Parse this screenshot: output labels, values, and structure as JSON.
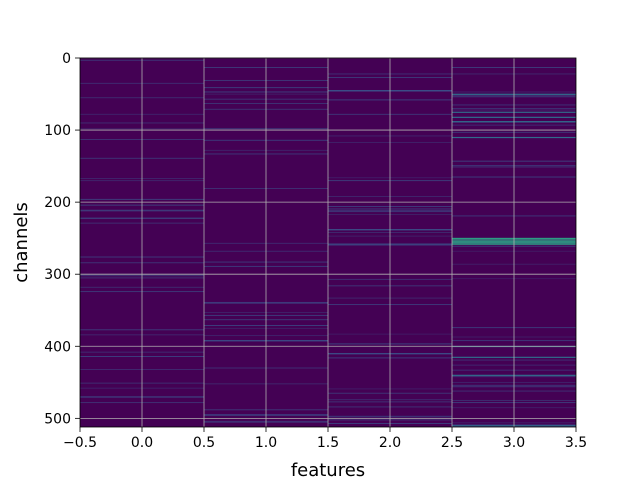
{
  "chart_data": {
    "type": "heatmap",
    "title": "",
    "xlabel": "features",
    "ylabel": "channels",
    "xlim": [
      -0.5,
      3.5
    ],
    "ylim": [
      512,
      0
    ],
    "columns": [
      0,
      1,
      2,
      3
    ],
    "rows": 512,
    "x_ticks": [
      "-0.5",
      "0.0",
      "0.5",
      "1.0",
      "1.5",
      "2.0",
      "2.5",
      "3.0",
      "3.5"
    ],
    "y_ticks": [
      "0",
      "100",
      "200",
      "300",
      "400",
      "500"
    ],
    "grid": true,
    "colormap": "viridis",
    "background_color": "#440154",
    "notable_highlights": [
      {
        "feature": 3,
        "channels": [
          250,
          252,
          254,
          256,
          258
        ],
        "level": 0.55
      },
      {
        "feature": 3,
        "channels": [
          50,
          75,
          82,
          88,
          110,
          400,
          415,
          440,
          510
        ],
        "level": 0.35
      },
      {
        "feature": 2,
        "channels": [
          45,
          238,
          258,
          410
        ],
        "level": 0.25
      },
      {
        "feature": 1,
        "channels": [
          392,
          495
        ],
        "level": 0.25
      },
      {
        "feature": 0,
        "channels": [
          222,
          470
        ],
        "level": 0.2
      }
    ]
  }
}
